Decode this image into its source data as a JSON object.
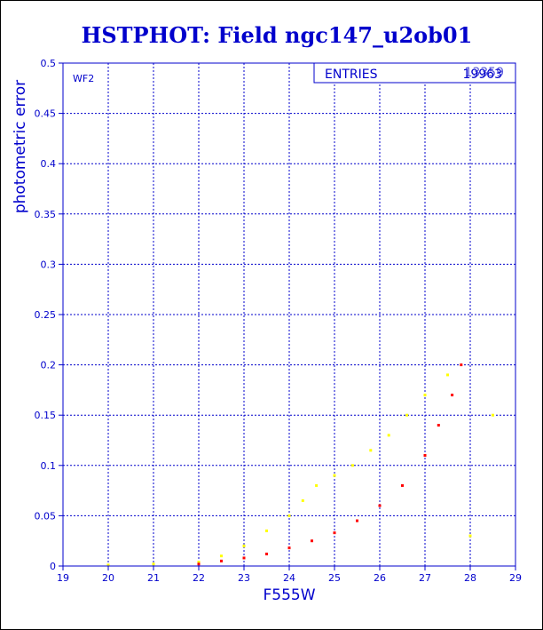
{
  "chart_data": {
    "type": "scatter",
    "title": "HSTPHOT: Field ngc147_u2ob01",
    "xlabel": "F555W",
    "ylabel": "photometric error",
    "xlim": [
      19,
      29
    ],
    "ylim": [
      0,
      0.5
    ],
    "xticks": [
      "19",
      "20",
      "21",
      "22",
      "23",
      "24",
      "25",
      "26",
      "27",
      "28",
      "29"
    ],
    "yticks": [
      "0",
      "0.05",
      "0.1",
      "0.15",
      "0.2",
      "0.25",
      "0.3",
      "0.35",
      "0.4",
      "0.45",
      "0.5"
    ],
    "grid": true,
    "panel_label": "WF2",
    "stats_box": {
      "label": "ENTRIES",
      "value": "19963",
      "overprint": "13359"
    },
    "series": [
      {
        "color": "#ffff00",
        "x": [
          20.0,
          21.0,
          22.0,
          22.5,
          23.0,
          23.5,
          24.0,
          24.3,
          24.6,
          25.0,
          25.4,
          25.8,
          26.2,
          26.6,
          27.0,
          27.5,
          28.0,
          28.5
        ],
        "y": [
          0.001,
          0.002,
          0.004,
          0.01,
          0.02,
          0.035,
          0.05,
          0.065,
          0.08,
          0.09,
          0.1,
          0.115,
          0.13,
          0.15,
          0.17,
          0.19,
          0.03,
          0.15
        ]
      },
      {
        "color": "#ff0000",
        "x": [
          22.0,
          22.5,
          23.0,
          23.5,
          24.0,
          24.5,
          25.0,
          25.5,
          26.0,
          26.5,
          27.0,
          27.3,
          27.6,
          27.8
        ],
        "y": [
          0.002,
          0.005,
          0.008,
          0.012,
          0.018,
          0.025,
          0.033,
          0.045,
          0.06,
          0.08,
          0.11,
          0.14,
          0.17,
          0.2
        ]
      }
    ]
  }
}
